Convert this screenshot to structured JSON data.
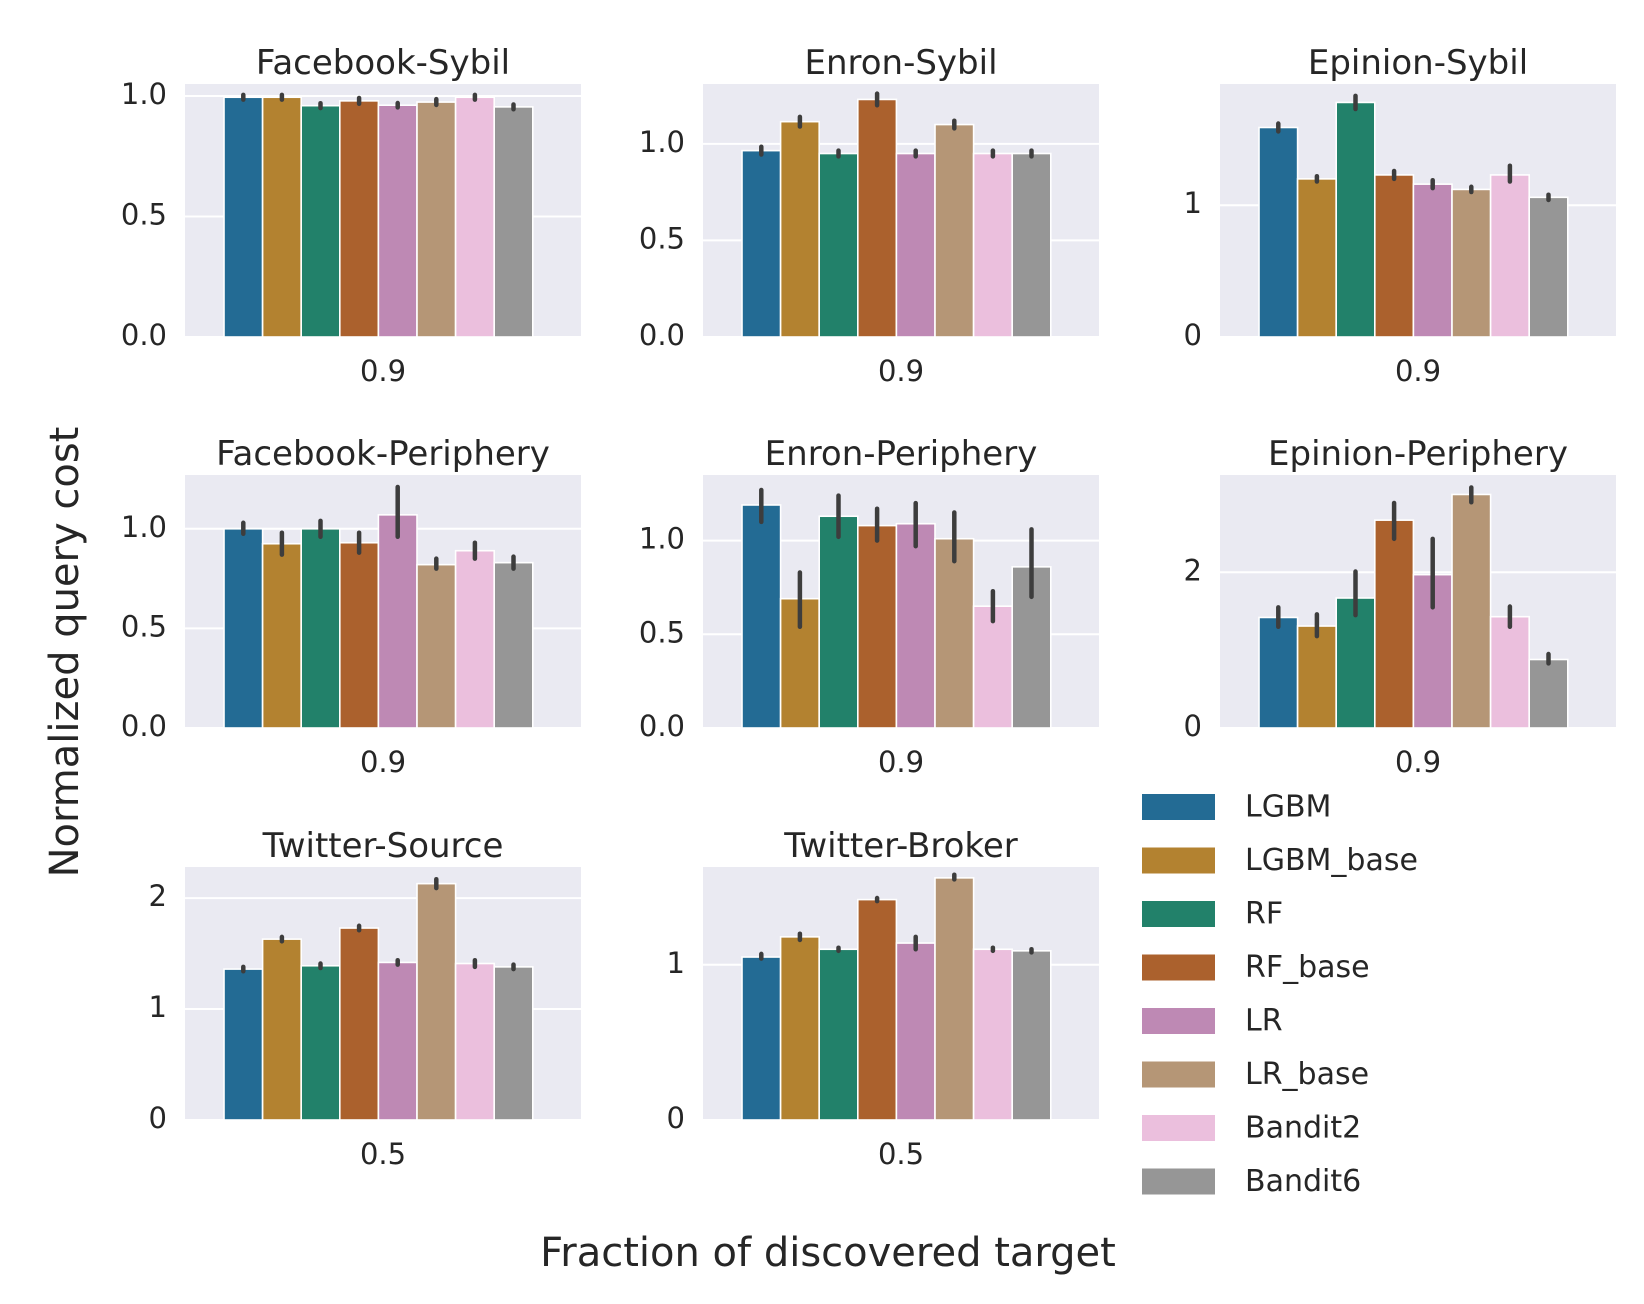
{
  "chart_data": {
    "type": "bar",
    "ylabel": "Normalized query cost",
    "xlabel": "Fraction of discovered target",
    "series_names": [
      "LGBM",
      "LGBM_base",
      "RF",
      "RF_base",
      "LR",
      "LR_base",
      "Bandit2",
      "Bandit6"
    ],
    "colors": [
      "#236b94",
      "#b38230",
      "#22816a",
      "#ab612d",
      "#be89b4",
      "#b59676",
      "#ebbfdd",
      "#969696"
    ],
    "background": "#eaeaf2",
    "error_bar_color": "#3d3d3d",
    "legend": {
      "placement": "lower-right",
      "items": [
        {
          "label": "LGBM",
          "color": "#236b94"
        },
        {
          "label": "LGBM_base",
          "color": "#b38230"
        },
        {
          "label": "RF",
          "color": "#22816a"
        },
        {
          "label": "RF_base",
          "color": "#ab612d"
        },
        {
          "label": "LR",
          "color": "#be89b4"
        },
        {
          "label": "LR_base",
          "color": "#b59676"
        },
        {
          "label": "Bandit2",
          "color": "#ebbfdd"
        },
        {
          "label": "Bandit6",
          "color": "#969696"
        }
      ]
    },
    "panels": [
      {
        "title": "Facebook-Sybil",
        "category": "0.9",
        "ylim": [
          0,
          1.05
        ],
        "yticks": [
          {
            "value": 0,
            "label": "0.0"
          },
          {
            "value": 0.5,
            "label": "0.5"
          },
          {
            "value": 1.0,
            "label": "1.0"
          }
        ],
        "values": [
          0.995,
          0.995,
          0.96,
          0.98,
          0.962,
          0.975,
          0.995,
          0.955
        ],
        "err": [
          [
            0.985,
            1.005
          ],
          [
            0.985,
            1.005
          ],
          [
            0.95,
            0.97
          ],
          [
            0.968,
            0.992
          ],
          [
            0.953,
            0.971
          ],
          [
            0.963,
            0.987
          ],
          [
            0.985,
            1.005
          ],
          [
            0.945,
            0.965
          ]
        ]
      },
      {
        "title": "Enron-Sybil",
        "category": "0.9",
        "ylim": [
          0,
          1.31
        ],
        "yticks": [
          {
            "value": 0,
            "label": "0.0"
          },
          {
            "value": 0.5,
            "label": "0.5"
          },
          {
            "value": 1.0,
            "label": "1.0"
          }
        ],
        "values": [
          0.965,
          1.115,
          0.95,
          1.23,
          0.95,
          1.1,
          0.95,
          0.95
        ],
        "err": [
          [
            0.945,
            0.985
          ],
          [
            1.09,
            1.14
          ],
          [
            0.935,
            0.965
          ],
          [
            1.2,
            1.26
          ],
          [
            0.935,
            0.965
          ],
          [
            1.08,
            1.12
          ],
          [
            0.935,
            0.965
          ],
          [
            0.935,
            0.965
          ]
        ]
      },
      {
        "title": "Epinion-Sybil",
        "category": "0.9",
        "ylim": [
          0,
          1.92
        ],
        "yticks": [
          {
            "value": 0,
            "label": "0"
          },
          {
            "value": 1,
            "label": "1"
          }
        ],
        "values": [
          1.59,
          1.2,
          1.78,
          1.23,
          1.16,
          1.12,
          1.23,
          1.06
        ],
        "err": [
          [
            1.56,
            1.62
          ],
          [
            1.18,
            1.22
          ],
          [
            1.73,
            1.83
          ],
          [
            1.2,
            1.26
          ],
          [
            1.13,
            1.19
          ],
          [
            1.1,
            1.14
          ],
          [
            1.18,
            1.3
          ],
          [
            1.04,
            1.08
          ]
        ]
      },
      {
        "title": "Facebook-Periphery",
        "category": "0.9",
        "ylim": [
          0,
          1.27
        ],
        "yticks": [
          {
            "value": 0,
            "label": "0.0"
          },
          {
            "value": 0.5,
            "label": "0.5"
          },
          {
            "value": 1.0,
            "label": "1.0"
          }
        ],
        "values": [
          1.0,
          0.925,
          1.0,
          0.93,
          1.07,
          0.82,
          0.89,
          0.83
        ],
        "err": [
          [
            0.975,
            1.03
          ],
          [
            0.87,
            0.98
          ],
          [
            0.96,
            1.04
          ],
          [
            0.88,
            0.98
          ],
          [
            0.96,
            1.21
          ],
          [
            0.8,
            0.85
          ],
          [
            0.85,
            0.93
          ],
          [
            0.8,
            0.86
          ]
        ]
      },
      {
        "title": "Enron-Periphery",
        "category": "0.9",
        "ylim": [
          0,
          1.35
        ],
        "yticks": [
          {
            "value": 0,
            "label": "0.0"
          },
          {
            "value": 0.5,
            "label": "0.5"
          },
          {
            "value": 1.0,
            "label": "1.0"
          }
        ],
        "values": [
          1.19,
          0.69,
          1.13,
          1.08,
          1.09,
          1.01,
          0.65,
          0.86
        ],
        "err": [
          [
            1.1,
            1.27
          ],
          [
            0.54,
            0.83
          ],
          [
            1.02,
            1.24
          ],
          [
            1.0,
            1.17
          ],
          [
            0.97,
            1.2
          ],
          [
            0.89,
            1.15
          ],
          [
            0.57,
            0.73
          ],
          [
            0.7,
            1.06
          ]
        ]
      },
      {
        "title": "Epinion-Periphery",
        "category": "0.9",
        "ylim": [
          0,
          3.25
        ],
        "yticks": [
          {
            "value": 0,
            "label": "0"
          },
          {
            "value": 2,
            "label": "2"
          }
        ],
        "values": [
          1.42,
          1.31,
          1.67,
          2.67,
          1.97,
          3.0,
          1.43,
          0.88
        ],
        "err": [
          [
            1.3,
            1.55
          ],
          [
            1.18,
            1.46
          ],
          [
            1.45,
            2.01
          ],
          [
            2.43,
            2.89
          ],
          [
            1.55,
            2.43
          ],
          [
            2.9,
            3.09
          ],
          [
            1.3,
            1.56
          ],
          [
            0.83,
            0.95
          ]
        ]
      },
      {
        "title": "Twitter-Source",
        "category": "0.5",
        "ylim": [
          0,
          2.28
        ],
        "yticks": [
          {
            "value": 0,
            "label": "0"
          },
          {
            "value": 1,
            "label": "1"
          },
          {
            "value": 2,
            "label": "2"
          }
        ],
        "values": [
          1.36,
          1.63,
          1.39,
          1.73,
          1.42,
          2.13,
          1.41,
          1.38
        ],
        "err": [
          [
            1.34,
            1.38
          ],
          [
            1.61,
            1.65
          ],
          [
            1.37,
            1.41
          ],
          [
            1.71,
            1.75
          ],
          [
            1.4,
            1.44
          ],
          [
            2.09,
            2.17
          ],
          [
            1.38,
            1.44
          ],
          [
            1.36,
            1.4
          ]
        ]
      },
      {
        "title": "Twitter-Broker",
        "category": "0.5",
        "ylim": [
          0,
          1.63
        ],
        "yticks": [
          {
            "value": 0,
            "label": "0"
          },
          {
            "value": 1,
            "label": "1"
          }
        ],
        "values": [
          1.05,
          1.18,
          1.1,
          1.42,
          1.14,
          1.56,
          1.1,
          1.09
        ],
        "err": [
          [
            1.04,
            1.07
          ],
          [
            1.16,
            1.2
          ],
          [
            1.09,
            1.11
          ],
          [
            1.41,
            1.43
          ],
          [
            1.1,
            1.18
          ],
          [
            1.55,
            1.58
          ],
          [
            1.09,
            1.11
          ],
          [
            1.08,
            1.1
          ]
        ]
      }
    ]
  }
}
